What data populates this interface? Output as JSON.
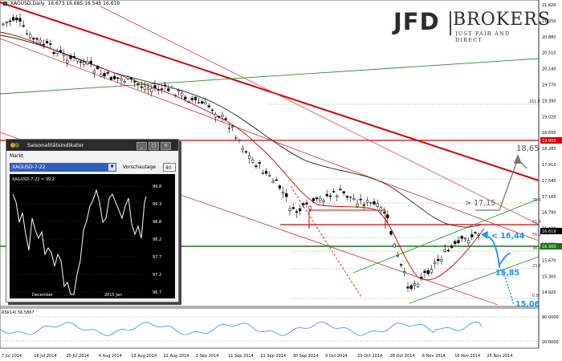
{
  "header": {
    "symbol": "XAGUSD,Daily",
    "ohlc": "16.673 16.685 16.545 16.619"
  },
  "logo": {
    "brand": "JFD",
    "brand2": "BROKERS",
    "tagline": "JUST FAIR AND DIRECT"
  },
  "colors": {
    "bg": "#ffffff",
    "red_line": "#d40000",
    "green_line": "#2a8a2a",
    "ma": "#333333",
    "blue": "#1e90ff",
    "up_candle": "#ffffff",
    "down_candle": "#000000"
  },
  "price_axis": {
    "labels": [
      "21.620",
      "21.250",
      "20.880",
      "20.510",
      "20.140",
      "19.770",
      "19.390",
      "19.020",
      "18.650",
      "18.280",
      "17.910",
      "17.540",
      "17.160",
      "16.790",
      "16.420",
      "16.050",
      "15.670",
      "15.300",
      "14.920"
    ],
    "markers": {
      "red_level": "19.900",
      "current": "16.619",
      "green_level": "16.300"
    }
  },
  "rsi": {
    "label": "RSI(14) 56.5867",
    "levels": [
      "80.0000",
      "20.0000"
    ]
  },
  "date_axis": [
    "7 Jul 2014",
    "16 Jul 2014",
    "25 Jul 2014",
    "4 Aug 2014",
    "13 Aug 2014",
    "22 Aug 2014",
    "2 Sep 2014",
    "11 Sep 2014",
    "21 Sep 2014",
    "30 Sep 2014",
    "9 Oct 2014",
    "20 Oct 2014",
    "28 Oct 2014",
    "6 Nov 2014",
    "16 Nov 2014",
    "25 Nov 2014"
  ],
  "fib_labels": [
    "161.8",
    "78.6",
    "61.8",
    "50.0",
    "38.2",
    "23.6",
    "0.0"
  ],
  "annotations": {
    "target_high": "18,65",
    "target_mid": "> 17,15",
    "now": "< 16,44",
    "down1": "15,85",
    "down2": "15,06"
  },
  "indicator_window": {
    "title": "Saisonalitätsindikator",
    "markt_label": "Markt",
    "symbol_value": "XAGUSD-7-22",
    "vorschau_label": "Vorschautage",
    "vorschau_value": "40",
    "legend": "XAGUSD-7-22 = 99.2",
    "y_labels": [
      "99.8",
      "99.3",
      "98.8",
      "98.2",
      "97.7",
      "97.2",
      "96.7"
    ],
    "x_labels": [
      "December",
      "2015 Jan"
    ]
  }
}
